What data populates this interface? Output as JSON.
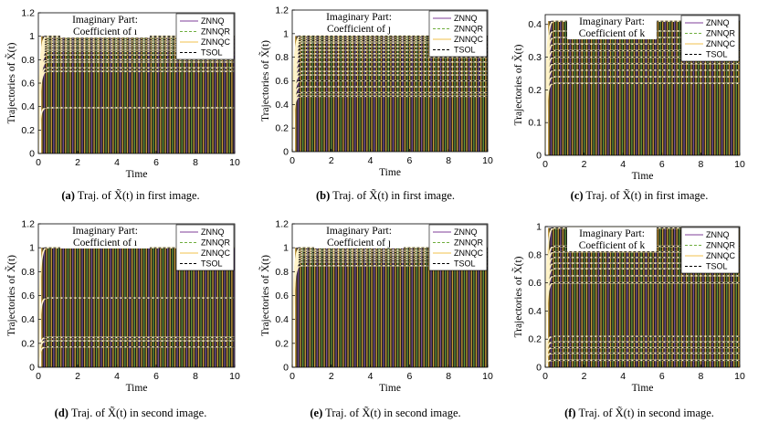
{
  "chart_data": [
    {
      "panel_label": "(a)",
      "caption_text": "Traj. of X̃(t) in first image.",
      "type": "line",
      "title": "Imaginary Part:",
      "subtitle": "Coefficient of ı",
      "xlabel": "Time",
      "ylabel": "Trajectories of X̃(t)",
      "xlim": [
        0,
        10
      ],
      "ylim": [
        0,
        1.2
      ],
      "xticks": [
        "0",
        "2",
        "4",
        "6",
        "8",
        "10"
      ],
      "yticks": [
        "0",
        "0.2",
        "0.4",
        "0.6",
        "0.8",
        "1",
        "1.2"
      ],
      "steady_values": [
        0.39,
        0.7,
        0.73,
        0.78,
        0.8,
        0.84,
        0.87,
        0.89,
        0.91,
        0.93,
        0.95,
        0.97,
        0.99,
        1.0
      ]
    },
    {
      "panel_label": "(b)",
      "caption_text": "Traj. of X̃(t) in first image.",
      "type": "line",
      "title": "Imaginary Part:",
      "subtitle": "Coefficient of ȷ",
      "xlabel": "Time",
      "ylabel": "Trajectories of X̃(t)",
      "xlim": [
        0,
        10
      ],
      "ylim": [
        0,
        1.2
      ],
      "xticks": [
        "0",
        "2",
        "4",
        "6",
        "8",
        "10"
      ],
      "yticks": [
        "0",
        "0.2",
        "0.4",
        "0.6",
        "0.8",
        "1",
        "1.2"
      ],
      "steady_values": [
        0.47,
        0.5,
        0.55,
        0.6,
        0.65,
        0.68,
        0.72,
        0.76,
        0.8,
        0.83,
        0.86,
        0.89,
        0.92,
        0.94,
        0.96,
        0.98
      ]
    },
    {
      "panel_label": "(c)",
      "caption_text": "Traj. of X̃(t) in first image.",
      "type": "line",
      "title": "Imaginary Part:",
      "subtitle": "Coefficient of k",
      "xlabel": "Time",
      "ylabel": "Trajectories of X̃(t)",
      "xlim": [
        0,
        10
      ],
      "ylim": [
        0,
        0.43
      ],
      "xticks": [
        "0",
        "2",
        "4",
        "6",
        "8",
        "10"
      ],
      "yticks": [
        "0",
        "0.1",
        "0.2",
        "0.3",
        "0.4"
      ],
      "steady_values": [
        0.22,
        0.24,
        0.26,
        0.28,
        0.3,
        0.32,
        0.34,
        0.36,
        0.38,
        0.41
      ]
    },
    {
      "panel_label": "(d)",
      "caption_text": "Traj. of X̃(t) in second image.",
      "type": "line",
      "title": "Imaginary Part:",
      "subtitle": "Coefficient of ı",
      "xlabel": "Time",
      "ylabel": "Trajectories of X̃(t)",
      "xlim": [
        0,
        10
      ],
      "ylim": [
        0,
        1.2
      ],
      "xticks": [
        "0",
        "2",
        "4",
        "6",
        "8",
        "10"
      ],
      "yticks": [
        "0",
        "0.2",
        "0.4",
        "0.6",
        "0.8",
        "1",
        "1.2"
      ],
      "steady_values": [
        0.17,
        0.22,
        0.25,
        0.58,
        1.0
      ]
    },
    {
      "panel_label": "(e)",
      "caption_text": "Traj. of X̃(t) in second image.",
      "type": "line",
      "title": "Imaginary Part:",
      "subtitle": "Coefficient of ȷ",
      "xlabel": "Time",
      "ylabel": "Trajectories of X̃(t)",
      "xlim": [
        0,
        10
      ],
      "ylim": [
        0,
        1.2
      ],
      "xticks": [
        "0",
        "2",
        "4",
        "6",
        "8",
        "10"
      ],
      "yticks": [
        "0",
        "0.2",
        "0.4",
        "0.6",
        "0.8",
        "1",
        "1.2"
      ],
      "steady_values": [
        0.85,
        0.88,
        0.9,
        0.92,
        0.94,
        0.96,
        0.98,
        1.0
      ]
    },
    {
      "panel_label": "(f)",
      "caption_text": "Traj. of X̃(t) in second image.",
      "type": "line",
      "title": "Imaginary Part:",
      "subtitle": "Coefficient of k",
      "xlabel": "Time",
      "ylabel": "Trajectories of X̃(t)",
      "xlim": [
        0,
        10
      ],
      "ylim": [
        0,
        1.0
      ],
      "xticks": [
        "0",
        "2",
        "4",
        "6",
        "8",
        "10"
      ],
      "yticks": [
        "0",
        "0.2",
        "0.4",
        "0.6",
        "0.8",
        "1"
      ],
      "steady_values": [
        0.05,
        0.1,
        0.14,
        0.18,
        0.22,
        0.6,
        0.65,
        0.7,
        0.74,
        0.78,
        0.82,
        0.86,
        0.99
      ]
    }
  ],
  "legend": {
    "placement": "top-right",
    "entries": [
      {
        "name": "ZNNQ",
        "color": "#7f3f98",
        "dash": "solid"
      },
      {
        "name": "ZNNQR",
        "color": "#6fae3f",
        "dash": "dashed"
      },
      {
        "name": "ZNNQC",
        "color": "#f2c14e",
        "dash": "solid"
      },
      {
        "name": "TSOL",
        "color": "#000000",
        "dash": "dashed"
      }
    ]
  },
  "colors": {
    "band_dark": "#1a1a1a",
    "band_yellow": "#e8b23a",
    "band_purple": "#8a5aa8",
    "band_green": "#6fae3f"
  }
}
